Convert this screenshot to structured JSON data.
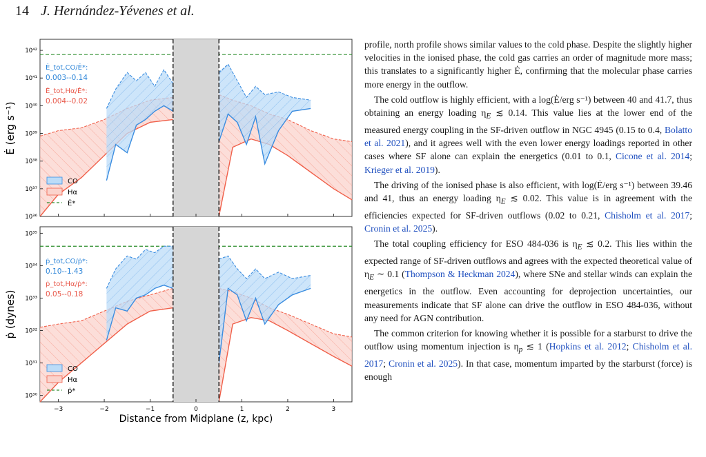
{
  "header": {
    "page_number": "14",
    "authors": "J. Hernández-Yévenes et al."
  },
  "figure": {
    "panels": [
      {
        "id": "energy",
        "ylabel": "Ė (erg s⁻¹)",
        "yticks": [
          "10⁴²",
          "10⁴¹",
          "10⁴⁰",
          "10³⁹",
          "10³⁸",
          "10³⁷",
          "10³⁶"
        ],
        "annotation_co_label": "Ė_tot,CO/Ė*:",
        "annotation_co_range": "0.003--0.14",
        "annotation_ha_label": "Ė_tot,Hα/Ė*:",
        "annotation_ha_range": "0.004--0.02",
        "legend": [
          "CO",
          "Hα",
          "Ė*"
        ]
      },
      {
        "id": "momentum",
        "ylabel": "ṗ (dynes)",
        "yticks": [
          "10³⁵",
          "10³⁴",
          "10³³",
          "10³²",
          "10³¹",
          "10³⁰"
        ],
        "annotation_co_label": "ṗ_tot,CO/ṗ*:",
        "annotation_co_range": "0.10--1.43",
        "annotation_ha_label": "ṗ_tot,Hα/ṗ*:",
        "annotation_ha_range": "0.05--0.18",
        "legend": [
          "CO",
          "Hα",
          "ṗ*"
        ]
      }
    ],
    "xticks": [
      "−3",
      "−2",
      "−1",
      "0",
      "1",
      "2",
      "3"
    ],
    "xlabel": "Distance from Midplane (z, kpc)",
    "colors": {
      "co": "#3b8de0",
      "ha": "#f0604a",
      "ref": "#2a8c2a",
      "excluded": "#d6d6d6"
    }
  },
  "chart_data": [
    {
      "type": "area",
      "ylabel": "Ė (erg s⁻¹)",
      "xlabel": "Distance from Midplane (z, kpc)",
      "xlim": [
        -3.4,
        3.4
      ],
      "ylim_log10": [
        36,
        42.4
      ],
      "yscale": "log",
      "excluded_region": [
        -0.5,
        0.5
      ],
      "reference_line": {
        "name": "Ė*",
        "value_log10": 41.85
      },
      "series": [
        {
          "name": "CO",
          "x": [
            -1.95,
            -1.75,
            -1.5,
            -1.3,
            -1.1,
            -0.9,
            -0.7,
            -0.5
          ],
          "upper_log10": [
            39.9,
            40.6,
            41.2,
            40.9,
            41.2,
            40.7,
            41.3,
            40.8
          ],
          "lower_log10": [
            37.3,
            38.6,
            38.3,
            39.3,
            39.5,
            39.8,
            40.0,
            39.8
          ]
        },
        {
          "name": "CO",
          "x": [
            0.5,
            0.7,
            0.9,
            1.1,
            1.3,
            1.5,
            1.8,
            2.1,
            2.5
          ],
          "upper_log10": [
            41.2,
            41.5,
            40.9,
            40.3,
            40.7,
            40.4,
            40.5,
            40.3,
            40.2
          ],
          "lower_log10": [
            38.7,
            39.7,
            39.4,
            38.6,
            39.6,
            37.9,
            39.1,
            39.8,
            39.9
          ]
        },
        {
          "name": "Hα",
          "x": [
            -3.4,
            -3.0,
            -2.5,
            -2.0,
            -1.5,
            -1.0,
            -0.5
          ],
          "upper_log10": [
            38.9,
            39.1,
            39.2,
            39.5,
            39.9,
            40.2,
            40.3
          ],
          "lower_log10": [
            36.0,
            36.8,
            37.4,
            38.2,
            39.0,
            39.4,
            39.5
          ]
        },
        {
          "name": "Hα",
          "x": [
            0.5,
            0.8,
            1.2,
            1.6,
            2.0,
            2.5,
            3.0,
            3.4
          ],
          "upper_log10": [
            40.4,
            40.2,
            40.0,
            39.7,
            39.5,
            39.1,
            38.8,
            38.7
          ],
          "lower_log10": [
            36.0,
            38.5,
            38.8,
            38.6,
            38.2,
            37.6,
            37.0,
            36.6
          ]
        }
      ]
    },
    {
      "type": "area",
      "ylabel": "ṗ (dynes)",
      "xlabel": "Distance from Midplane (z, kpc)",
      "xlim": [
        -3.4,
        3.4
      ],
      "ylim_log10": [
        29.8,
        35.2
      ],
      "yscale": "log",
      "excluded_region": [
        -0.5,
        0.5
      ],
      "reference_line": {
        "name": "ṗ*",
        "value_log10": 34.6
      },
      "series": [
        {
          "name": "CO",
          "x": [
            -1.95,
            -1.75,
            -1.5,
            -1.3,
            -1.1,
            -0.9,
            -0.7,
            -0.5
          ],
          "upper_log10": [
            33.3,
            33.9,
            34.3,
            34.2,
            34.5,
            34.4,
            34.6,
            34.6
          ],
          "lower_log10": [
            31.7,
            32.7,
            32.6,
            33.0,
            33.1,
            33.3,
            33.4,
            33.3
          ]
        },
        {
          "name": "CO",
          "x": [
            0.5,
            0.7,
            0.9,
            1.1,
            1.3,
            1.5,
            1.8,
            2.1,
            2.5
          ],
          "upper_log10": [
            34.2,
            34.3,
            33.9,
            33.6,
            33.9,
            33.6,
            33.8,
            33.6,
            33.7
          ],
          "lower_log10": [
            31.0,
            33.3,
            33.1,
            32.3,
            33.0,
            32.2,
            32.8,
            33.1,
            33.3
          ]
        },
        {
          "name": "Hα",
          "x": [
            -3.4,
            -3.0,
            -2.5,
            -2.0,
            -1.5,
            -1.0,
            -0.5
          ],
          "upper_log10": [
            32.1,
            32.2,
            32.3,
            32.6,
            32.9,
            33.1,
            33.3
          ],
          "lower_log10": [
            29.8,
            30.4,
            31.0,
            31.6,
            32.2,
            32.6,
            32.7
          ]
        },
        {
          "name": "Hα",
          "x": [
            0.5,
            0.8,
            1.2,
            1.6,
            2.0,
            2.5,
            3.0,
            3.4
          ],
          "upper_log10": [
            33.3,
            33.2,
            33.0,
            32.7,
            32.5,
            32.2,
            31.9,
            31.8
          ],
          "lower_log10": [
            29.8,
            32.2,
            32.4,
            32.3,
            32.0,
            31.6,
            31.2,
            30.9
          ]
        }
      ]
    }
  ],
  "body": {
    "p1": "profile, north profile shows similar values to the cold phase. Despite the slightly higher velocities in the ionised phase, the cold gas carries an order of magnitude more mass; this translates to a significantly higher Ė, confirming that the molecular phase carries more energy in the outflow.",
    "p2a": "The cold outflow is highly efficient, with a log(Ė/erg s⁻¹) between 40 and 41.7, thus obtaining an energy loading η",
    "p2b": " ≲ 0.14. This value lies at the lower end of the measured energy coupling in the SF-driven outflow in NGC 4945 (0.15 to 0.4, ",
    "p2c1": "Bolatto et al. 2021",
    "p2c": "), and it agrees well with the even lower energy loadings reported in other cases where SF alone can explain the energetics (0.01 to 0.1, ",
    "p2c2": "Cicone et al. 2014",
    "p2d": "; ",
    "p2c3": "Krieger et al. 2019",
    "p2e": ").",
    "p3a": "The driving of the ionised phase is also efficient, with log(Ė/erg s⁻¹) between 39.46 and 41, thus an energy loading η",
    "p3b": " ≲ 0.02. This value is in agreement with the efficiencies expected for SF-driven outflows (0.02 to 0.21, ",
    "p3c1": "Chisholm et al. 2017",
    "p3d": "; ",
    "p3c2": "Cronin et al. 2025",
    "p3e": ").",
    "p4a": "The total coupling efficiency for ESO 484-036 is η",
    "p4b": " ≲ 0.2. This lies within the expected range of SF-driven outflows and agrees with the expected theoretical value of η",
    "p4c": " ∼ 0.1 (",
    "p4c1": "Thompson & Heckman 2024",
    "p4d": "), where SNe and stellar winds can explain the energetics in the outflow. Even accounting for deprojection uncertainties, our measurements indicate that SF alone can drive the outflow in ESO 484-036, without any need for AGN contribution.",
    "p5a": "The common criterion for knowing whether it is possible for a starburst to drive the outflow using momentum injection is η",
    "p5b": " ≲ 1 (",
    "p5c1": "Hopkins et al. 2012",
    "p5d": "; ",
    "p5c2": "Chisholm et al. 2017",
    "p5e": "; ",
    "p5c3": "Cronin et al. 2025",
    "p5f": "). In that case, momentum imparted by the starburst (force) is enough",
    "sub_E": "E",
    "sub_p": "p"
  }
}
